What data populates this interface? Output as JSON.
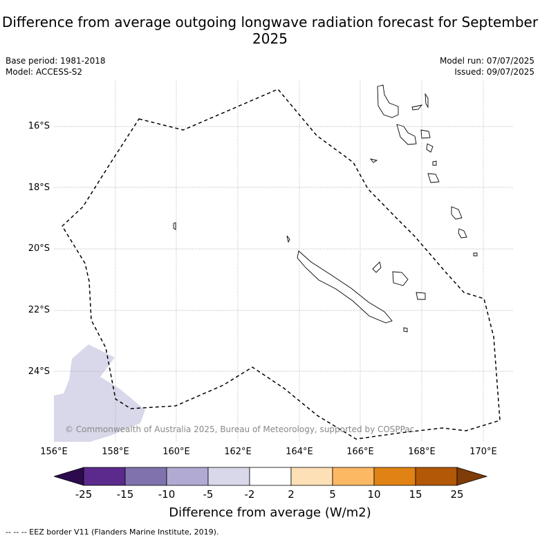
{
  "title": "Difference from average outgoing longwave radiation forecast for September 2025",
  "base_period": "Base period: 1981-2018",
  "model": "Model: ACCESS-S2",
  "model_run": "Model run: 07/07/2025",
  "issued": "Issued: 09/07/2025",
  "copyright": "© Commonwealth of Australia 2025, Bureau of Meteorology, supported by COSPPac",
  "lat_labels": [
    "16°S",
    "18°S",
    "20°S",
    "22°S",
    "24°S"
  ],
  "lon_labels": [
    "156°E",
    "158°E",
    "160°E",
    "162°E",
    "164°E",
    "166°E",
    "168°E",
    "170°E"
  ],
  "colorbar": {
    "ticks": [
      "-25",
      "-15",
      "-10",
      "-5",
      "-2",
      "2",
      "5",
      "10",
      "15",
      "25"
    ],
    "colors": [
      "#2d0a4e",
      "#5b2a8c",
      "#7f72ad",
      "#b1aad3",
      "#d8d8ea",
      "#ffffff",
      "#fee0b6",
      "#fdb863",
      "#e08214",
      "#b35806",
      "#7f3b08"
    ],
    "label": "Difference from average (W/m2)"
  },
  "legend_note": "--  --  -- EEZ border V11 (Flanders Marine Institute, 2019).",
  "chart_data": {
    "type": "heatmap",
    "extent": {
      "lon": [
        156,
        171
      ],
      "lat": [
        -26.3,
        -14.6
      ]
    },
    "anomaly_regions": [
      {
        "class": "-5 to -2",
        "color": "#d8d8ea",
        "area": "southwest corner, approx 156°E-159°E, 23.2°S-26.3°S"
      }
    ],
    "remaining_area_class": "-2 to 2"
  }
}
